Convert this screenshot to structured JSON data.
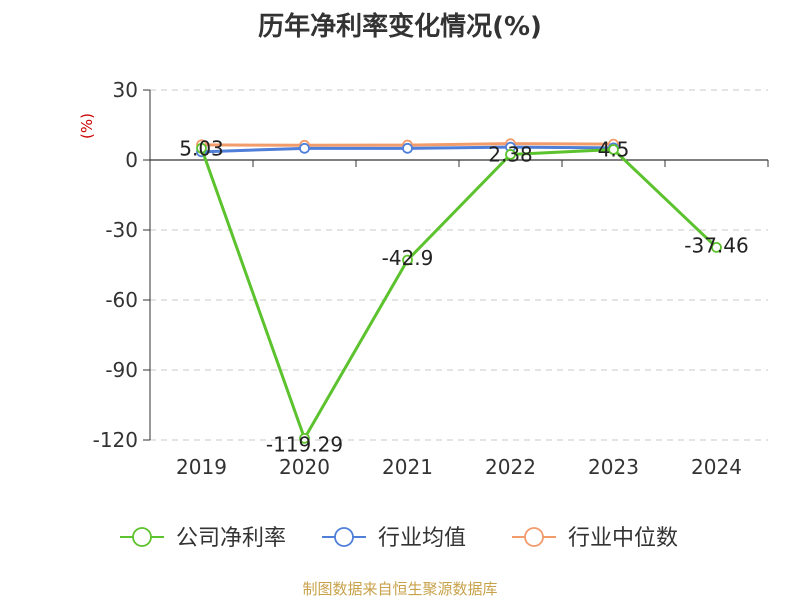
{
  "title": "历年净利率变化情况(%)",
  "source": "制图数据来自恒生聚源数据库",
  "chart_data": {
    "type": "line",
    "title": "历年净利率变化情况(%)",
    "ylabel": "(%)",
    "categories": [
      "2019",
      "2020",
      "2021",
      "2022",
      "2023",
      "2024"
    ],
    "ylim": [
      -120,
      30
    ],
    "yticks": [
      30,
      0,
      -30,
      -60,
      -90,
      -120
    ],
    "grid": true,
    "legend_position": "bottom",
    "series": [
      {
        "name": "公司净利率",
        "color": "#5cc22e",
        "values": [
          5.03,
          -119.29,
          -42.9,
          2.38,
          4.5,
          -37.46
        ],
        "labels": [
          "5.03",
          "-119.29",
          "-42.9",
          "2.38",
          "4.5",
          "-37.46"
        ]
      },
      {
        "name": "行业均值",
        "color": "#4f7fd9",
        "values": [
          3.5,
          5.0,
          5.0,
          5.5,
          5.2,
          null
        ]
      },
      {
        "name": "行业中位数",
        "color": "#f29b6b",
        "values": [
          6.5,
          6.3,
          6.4,
          7.0,
          6.8,
          null
        ]
      }
    ]
  }
}
